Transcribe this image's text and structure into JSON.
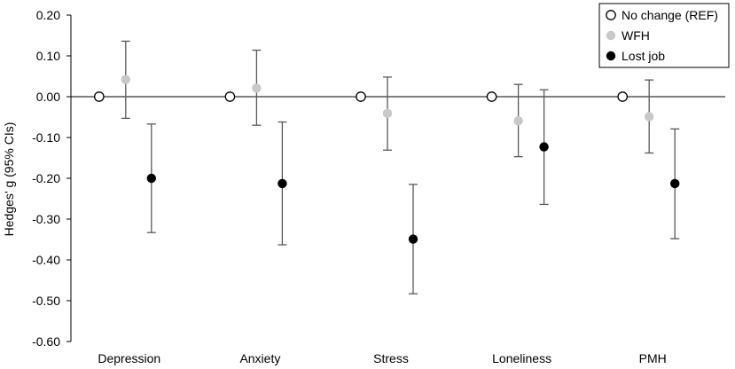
{
  "chart_data": {
    "type": "scatter",
    "subtype": "point-estimate-with-error-bars",
    "categories": [
      "Depression",
      "Anxiety",
      "Stress",
      "Loneliness",
      "PMH"
    ],
    "ylabel": "Hedges' g (95% CIs)",
    "ylim": [
      -0.6,
      0.2
    ],
    "yticks": [
      0.2,
      0.1,
      0.0,
      -0.1,
      -0.2,
      -0.3,
      -0.4,
      -0.5,
      -0.6
    ],
    "ytick_labels": [
      "0.20",
      "0.10",
      "0.00",
      "-0.10",
      "-0.20",
      "-0.30",
      "-0.40",
      "-0.50",
      "-0.60"
    ],
    "grid": false,
    "legend_position": "top-right",
    "series": [
      {
        "name": "No change (REF)",
        "marker": "open-circle",
        "color": "#ffffff",
        "stroke": "#000000",
        "values": [
          0.0,
          0.0,
          0.0,
          0.0,
          0.0
        ],
        "ci_low": [
          null,
          null,
          null,
          null,
          null
        ],
        "ci_high": [
          null,
          null,
          null,
          null,
          null
        ]
      },
      {
        "name": "WFH",
        "marker": "filled-circle",
        "color": "#c8c8c8",
        "values": [
          0.042,
          0.021,
          -0.041,
          -0.059,
          -0.049
        ],
        "ci_low": [
          -0.053,
          -0.07,
          -0.131,
          -0.147,
          -0.138
        ],
        "ci_high": [
          0.136,
          0.114,
          0.048,
          0.03,
          0.041
        ]
      },
      {
        "name": "Lost job",
        "marker": "filled-circle",
        "color": "#000000",
        "values": [
          -0.2,
          -0.213,
          -0.349,
          -0.123,
          -0.213
        ],
        "ci_low": [
          -0.333,
          -0.363,
          -0.483,
          -0.264,
          -0.348
        ],
        "ci_high": [
          -0.067,
          -0.062,
          -0.215,
          0.017,
          -0.079
        ]
      }
    ]
  },
  "colors": {
    "axis": "#000000",
    "errorbar": "#595959",
    "ref_fill": "#ffffff",
    "wfh_fill": "#c8c8c8",
    "lost_fill": "#000000"
  }
}
